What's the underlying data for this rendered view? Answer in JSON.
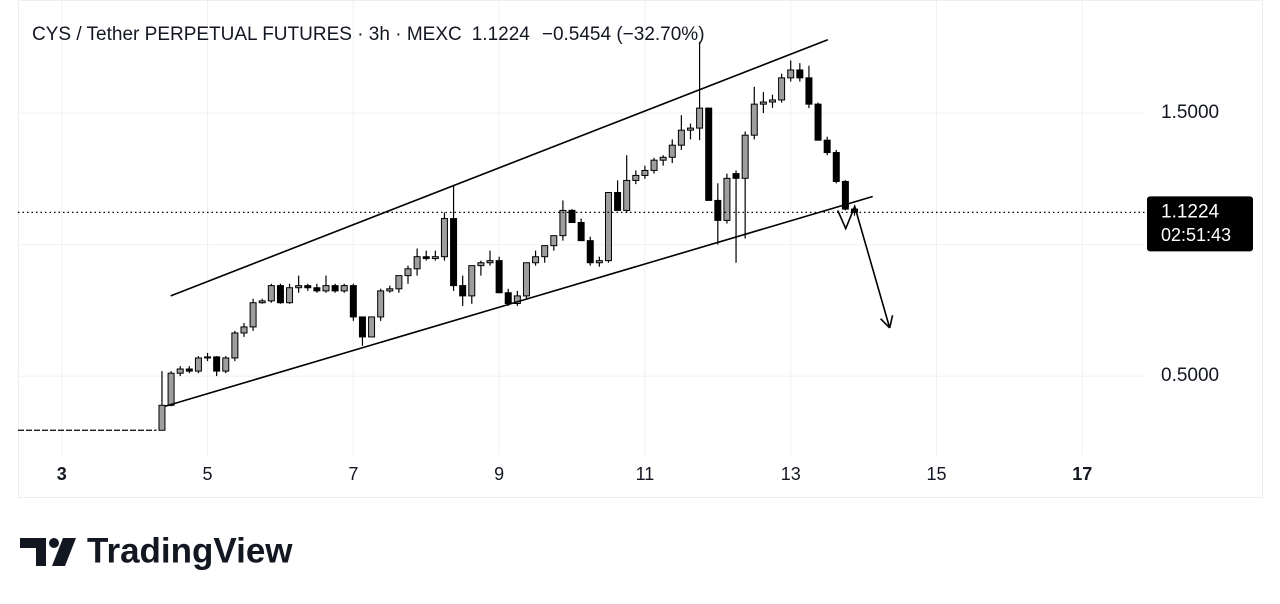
{
  "chart_data": {
    "type": "candlestick",
    "title": "CYS / Tether PERPETUAL FUTURES · 3h · MEXC",
    "last_price": 1.1224,
    "change": "−0.5454 (−32.70%)",
    "countdown": "02:51:43",
    "up_color": "#9e9e9e",
    "down_color": "#000000",
    "xlim": [
      2.4,
      17.86
    ],
    "xticks": [
      3,
      5,
      7,
      9,
      11,
      13,
      15,
      17
    ],
    "ylim": [
      0.2,
      1.93
    ],
    "yticks": [
      {
        "value": 0.5,
        "label": "0.5000"
      },
      {
        "value": 1,
        "label": null
      },
      {
        "value": 1.5,
        "label": "1.5000"
      }
    ],
    "grid": true,
    "baseline": {
      "x": [
        2.4,
        4.3
      ],
      "values": [
        0.294,
        0.294
      ]
    },
    "x": [
      4.375,
      4.5,
      4.625,
      4.75,
      4.875,
      5,
      5.125,
      5.25,
      5.375,
      5.5,
      5.625,
      5.75,
      5.875,
      6,
      6.125,
      6.25,
      6.375,
      6.5,
      6.625,
      6.75,
      6.875,
      7,
      7.125,
      7.25,
      7.375,
      7.5,
      7.625,
      7.75,
      7.875,
      8,
      8.125,
      8.25,
      8.375,
      8.5,
      8.625,
      8.75,
      8.875,
      9,
      9.125,
      9.25,
      9.375,
      9.5,
      9.625,
      9.75,
      9.875,
      10,
      10.125,
      10.25,
      10.375,
      10.5,
      10.625,
      10.75,
      10.875,
      11,
      11.125,
      11.25,
      11.375,
      11.5,
      11.625,
      11.75,
      11.875,
      12,
      12.125,
      12.25,
      12.375,
      12.5,
      12.625,
      12.75,
      12.875,
      13,
      13.125,
      13.25,
      13.375,
      13.5,
      13.625,
      13.75,
      13.875
    ],
    "open": [
      0.294,
      0.389,
      0.511,
      0.527,
      0.519,
      0.569,
      0.573,
      0.519,
      0.569,
      0.664,
      0.687,
      0.779,
      0.786,
      0.844,
      0.779,
      0.836,
      0.844,
      0.836,
      0.824,
      0.844,
      0.824,
      0.844,
      0.725,
      0.649,
      0.725,
      0.824,
      0.832,
      0.882,
      0.908,
      0.954,
      0.947,
      0.954,
      1.099,
      0.844,
      0.805,
      0.92,
      0.931,
      0.939,
      0.817,
      0.776,
      0.805,
      0.931,
      0.954,
      0.996,
      1.034,
      1.13,
      1.084,
      1.015,
      0.931,
      0.939,
      1.198,
      1.13,
      1.244,
      1.263,
      1.282,
      1.321,
      1.332,
      1.378,
      1.435,
      1.443,
      1.519,
      1.168,
      1.092,
      1.27,
      1.252,
      1.416,
      1.534,
      1.542,
      1.55,
      1.634,
      1.664,
      1.634,
      1.534,
      1.397,
      1.35,
      1.24,
      1.135
    ],
    "high": [
      0.519,
      0.519,
      0.538,
      0.538,
      0.576,
      0.588,
      0.576,
      0.576,
      0.672,
      0.702,
      0.794,
      0.794,
      0.851,
      0.851,
      0.851,
      0.882,
      0.851,
      0.851,
      0.882,
      0.851,
      0.851,
      0.851,
      0.725,
      0.725,
      0.832,
      0.844,
      0.882,
      0.92,
      0.985,
      0.977,
      0.977,
      1.122,
      1.225,
      0.882,
      0.92,
      0.939,
      0.977,
      0.954,
      0.832,
      0.824,
      0.931,
      0.977,
      0.996,
      1.034,
      1.168,
      1.135,
      1.099,
      1.03,
      0.954,
      1.198,
      1.244,
      1.34,
      1.282,
      1.3,
      1.33,
      1.34,
      1.4,
      1.492,
      1.46,
      1.771,
      1.519,
      1.233,
      1.27,
      1.282,
      1.43,
      1.6,
      1.58,
      1.57,
      1.65,
      1.7,
      1.69,
      1.68,
      1.54,
      1.41,
      1.36,
      1.245,
      1.14
    ],
    "low": [
      0.294,
      0.385,
      0.5,
      0.511,
      0.511,
      0.557,
      0.5,
      0.511,
      0.557,
      0.649,
      0.672,
      0.775,
      0.779,
      0.775,
      0.775,
      0.817,
      0.824,
      0.817,
      0.817,
      0.817,
      0.817,
      0.71,
      0.615,
      0.649,
      0.71,
      0.817,
      0.817,
      0.851,
      0.882,
      0.939,
      0.939,
      0.939,
      0.824,
      0.767,
      0.775,
      0.882,
      0.92,
      0.817,
      0.767,
      0.767,
      0.794,
      0.92,
      0.931,
      0.977,
      1.015,
      1.084,
      1.015,
      0.92,
      0.916,
      0.931,
      1.13,
      1.12,
      1.23,
      1.25,
      1.27,
      1.3,
      1.31,
      1.36,
      1.4,
      1.397,
      1.168,
      1.0,
      1.08,
      0.931,
      1.023,
      1.4,
      1.5,
      1.52,
      1.54,
      1.62,
      1.62,
      1.519,
      1.397,
      1.34,
      1.233,
      1.13,
      1.11
    ],
    "close": [
      0.389,
      0.511,
      0.527,
      0.519,
      0.569,
      0.573,
      0.519,
      0.569,
      0.664,
      0.687,
      0.779,
      0.786,
      0.844,
      0.779,
      0.836,
      0.844,
      0.836,
      0.824,
      0.844,
      0.824,
      0.844,
      0.725,
      0.649,
      0.725,
      0.824,
      0.832,
      0.882,
      0.908,
      0.954,
      0.947,
      0.954,
      1.099,
      0.844,
      0.805,
      0.92,
      0.931,
      0.939,
      0.817,
      0.776,
      0.805,
      0.931,
      0.954,
      0.996,
      1.034,
      1.13,
      1.084,
      1.015,
      0.931,
      0.939,
      1.198,
      1.13,
      1.244,
      1.263,
      1.282,
      1.321,
      1.332,
      1.378,
      1.435,
      1.443,
      1.519,
      1.168,
      1.092,
      1.252,
      1.252,
      1.416,
      1.534,
      1.542,
      1.55,
      1.634,
      1.664,
      1.634,
      1.534,
      1.397,
      1.35,
      1.24,
      1.135,
      1.1224
    ],
    "drawings": [
      {
        "x": [
          4.495,
          13.508
        ],
        "values": [
          0.805,
          1.779
        ]
      },
      {
        "x": [
          4.413,
          14.125
        ],
        "values": [
          0.385,
          1.183
        ]
      },
      {
        "x": [
          13.645,
          13.755,
          13.878,
          14.358
        ],
        "values": [
          1.13,
          1.061,
          1.145,
          0.683
        ],
        "arrow": true
      }
    ]
  },
  "footer": {
    "brand": "TradingView"
  }
}
